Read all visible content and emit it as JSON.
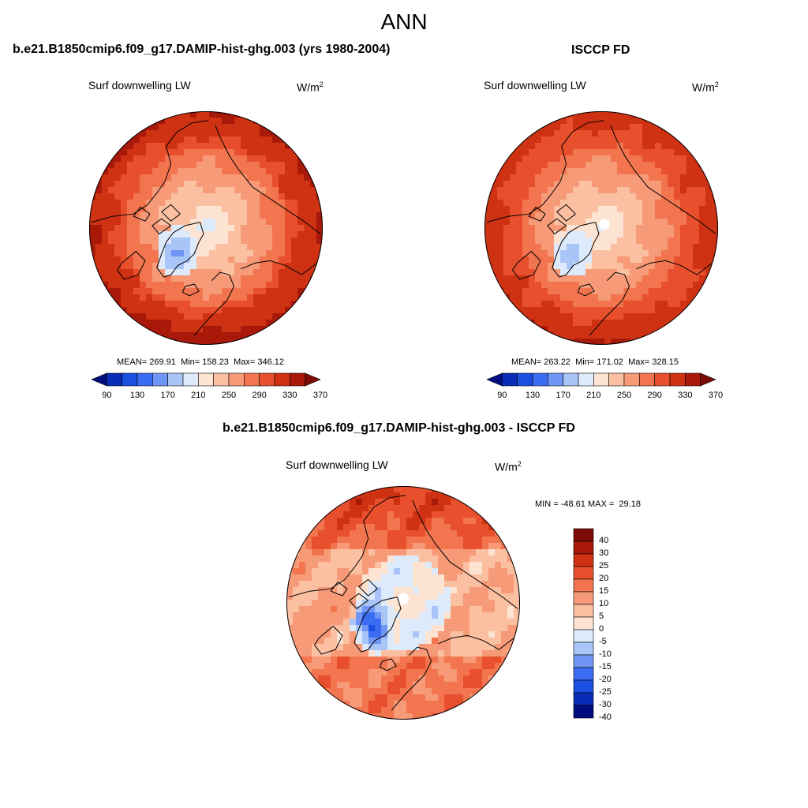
{
  "page": {
    "title": "ANN"
  },
  "colors": {
    "model_obs_palette": [
      "#000d7f",
      "#0a2bb5",
      "#1a4fe0",
      "#3a6df2",
      "#6f96f4",
      "#a9c4f7",
      "#ddeafb",
      "#fde3d1",
      "#fbc0a2",
      "#f79a78",
      "#f2754f",
      "#e8502d",
      "#cf3213",
      "#a9190a",
      "#7d0b06"
    ],
    "diff_palette": [
      "#000d7f",
      "#0a2bb5",
      "#1a4fe0",
      "#3a6df2",
      "#6f96f4",
      "#a9c4f7",
      "#ddeafb",
      "#fde3d1",
      "#fbc0a2",
      "#f79a78",
      "#f2754f",
      "#e8502d",
      "#cf3213",
      "#a9190a",
      "#7d0b06"
    ]
  },
  "chart_data": [
    {
      "type": "heatmap",
      "projection": "north-polar-stereographic",
      "title": "b.e21.B1850cmip6.f09_g17.DAMIP-hist-ghg.003 (yrs 1980-2004)",
      "variable": "Surf downwelling LW",
      "units_base": "W/m",
      "units_exp": "2",
      "stats": {
        "mean_label": "MEAN=",
        "mean": "269.91",
        "min_label": "Min=",
        "min": "158.23",
        "max_label": "Max=",
        "max": "346.12"
      },
      "colorbar": {
        "orientation": "horizontal",
        "ticks": [
          "90",
          "130",
          "170",
          "210",
          "250",
          "290",
          "330",
          "370"
        ]
      },
      "field": {
        "pole_value": 200,
        "lowest": 165,
        "arctic_high": 205,
        "midlat": 300,
        "edge": 340
      }
    },
    {
      "type": "heatmap",
      "projection": "north-polar-stereographic",
      "title": "ISCCP FD",
      "variable": "Surf downwelling LW",
      "units_base": "W/m",
      "units_exp": "2",
      "stats": {
        "mean_label": "MEAN=",
        "mean": "263.22",
        "min_label": "Min=",
        "min": "171.02",
        "max_label": "Max=",
        "max": "328.15"
      },
      "colorbar": {
        "orientation": "horizontal",
        "ticks": [
          "90",
          "130",
          "170",
          "210",
          "250",
          "290",
          "330",
          "370"
        ]
      },
      "field": {
        "pole_value": 205,
        "lowest": 175,
        "arctic_high": 210,
        "midlat": 295,
        "edge": 328
      }
    },
    {
      "type": "heatmap",
      "projection": "north-polar-stereographic",
      "title": "b.e21.B1850cmip6.f09_g17.DAMIP-hist-ghg.003 - ISCCP FD",
      "variable": "Surf downwelling LW",
      "units_base": "W/m",
      "units_exp": "2",
      "stats": {
        "min_label": "MIN =",
        "min": "-48.61",
        "max_label": "MAX =",
        "max": "29.18"
      },
      "colorbar": {
        "orientation": "vertical",
        "ticks": [
          "40",
          "30",
          "25",
          "20",
          "15",
          "10",
          "5",
          "0",
          "-5",
          "-10",
          "-15",
          "-20",
          "-25",
          "-30",
          "-40"
        ]
      },
      "field": {
        "greenland": -30,
        "arctic_ocean": -5,
        "siberia": 20,
        "europe": 12,
        "pacific": 5
      }
    }
  ]
}
